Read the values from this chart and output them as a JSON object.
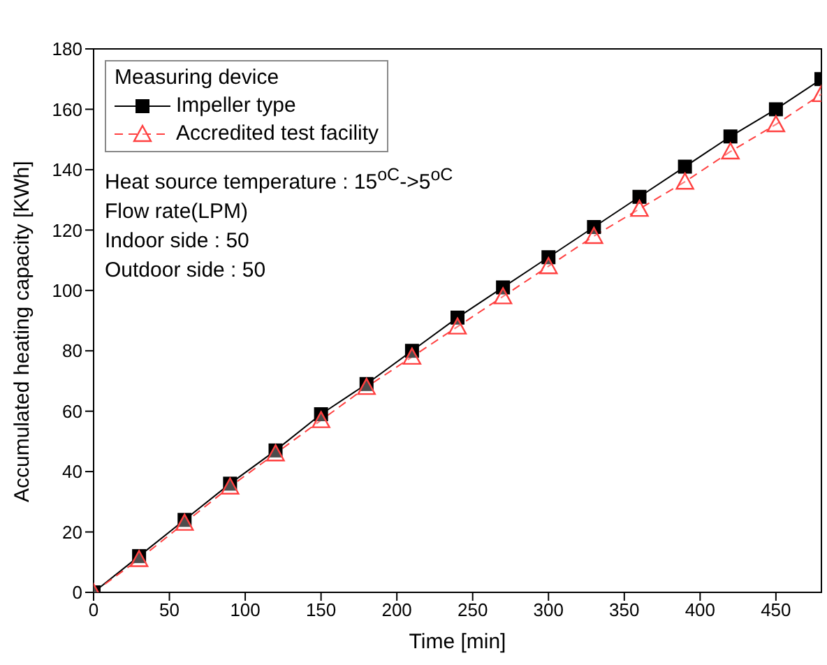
{
  "chart_data": {
    "type": "line",
    "xlabel": "Time [min]",
    "ylabel": "Accumulated heating capacity [KWh]",
    "legend_title": "Measuring device",
    "legend": "top left",
    "grid": false,
    "x": [
      0,
      30,
      60,
      90,
      120,
      150,
      180,
      210,
      240,
      270,
      300,
      330,
      360,
      390,
      420,
      450,
      480
    ],
    "xlim": [
      0,
      480
    ],
    "xticks": [
      0,
      50,
      100,
      150,
      200,
      250,
      300,
      350,
      400,
      450
    ],
    "ylim": [
      0,
      180
    ],
    "yticks": [
      0,
      20,
      40,
      60,
      80,
      100,
      120,
      140,
      160,
      180
    ],
    "series": [
      {
        "name": "Impeller type",
        "color": "#000000",
        "marker": "square",
        "line_style": "solid",
        "values": [
          0,
          12,
          24,
          36,
          47,
          59,
          69,
          80,
          91,
          101,
          111,
          121,
          131,
          141,
          151,
          160,
          170
        ]
      },
      {
        "name": "Accredited test facility",
        "color": "#ff4040",
        "marker": "triangle",
        "line_style": "dashed",
        "values": [
          0,
          11,
          23,
          35,
          46,
          57,
          68,
          78,
          88,
          98,
          108,
          118,
          127,
          136,
          146,
          155,
          165
        ]
      }
    ],
    "annotations": [
      "Heat source temperature : 15$^{oC}$->5$^{oC}$",
      "Flow rate(LPM)",
      "Indoor side : 50",
      "Outdoor side : 50"
    ]
  }
}
